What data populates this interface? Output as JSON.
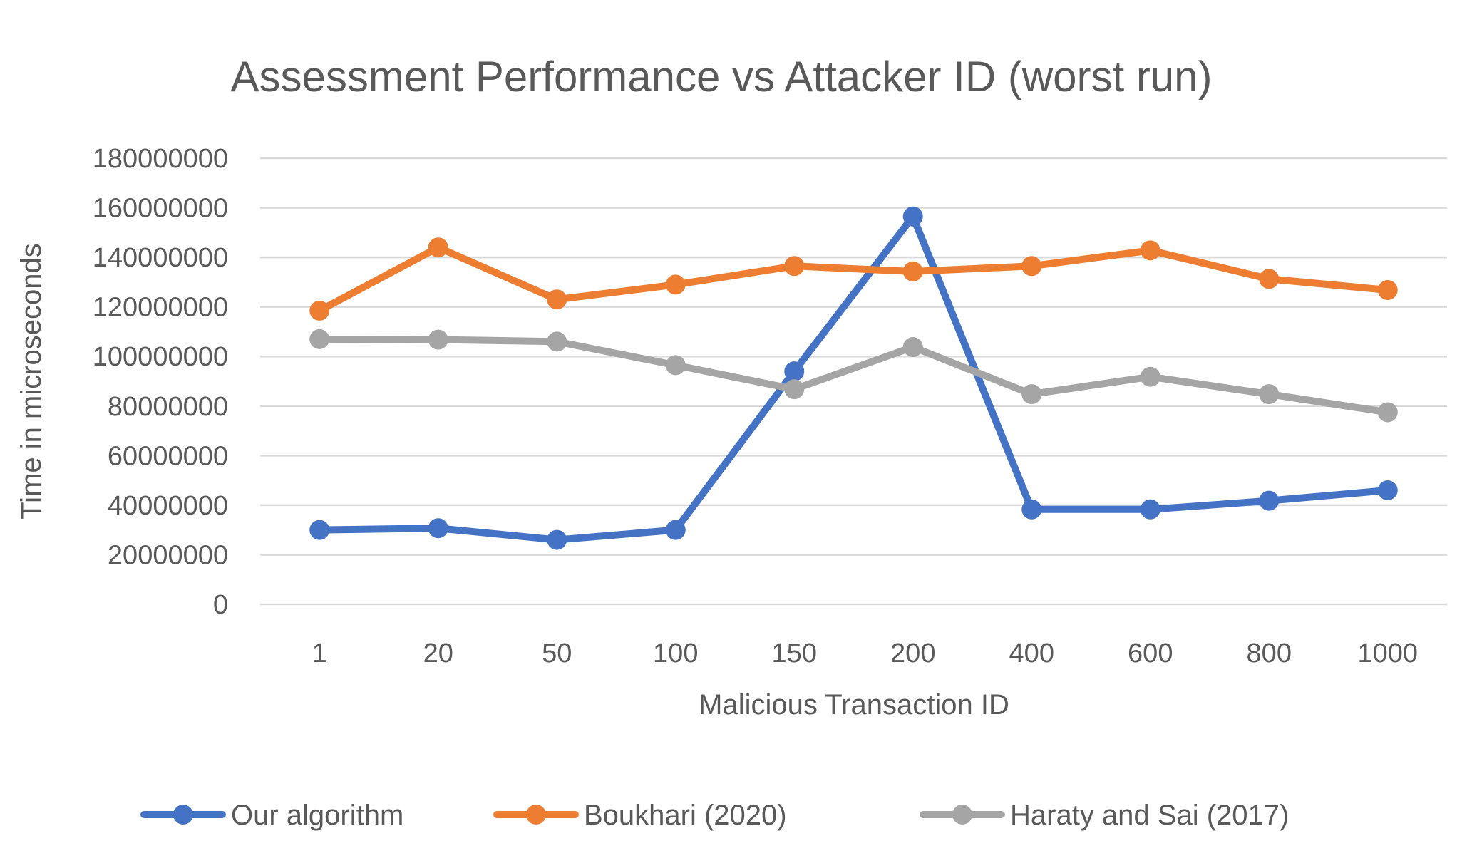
{
  "chart_data": {
    "type": "line",
    "title": "Assessment Performance vs Attacker ID (worst run)",
    "xlabel": "Malicious Transaction ID",
    "ylabel": "Time in microseconds",
    "categories": [
      "1",
      "20",
      "50",
      "100",
      "150",
      "200",
      "400",
      "600",
      "800",
      "1000"
    ],
    "ylim": [
      0,
      180000000
    ],
    "yticks": [
      0,
      20000000,
      40000000,
      60000000,
      80000000,
      100000000,
      120000000,
      140000000,
      160000000,
      180000000
    ],
    "ytick_labels": [
      "0",
      "20000000",
      "40000000",
      "60000000",
      "80000000",
      "100000000",
      "120000000",
      "140000000",
      "160000000",
      "180000000"
    ],
    "grid": true,
    "legend_position": "bottom",
    "series": [
      {
        "name": "Our algorithm",
        "color": "#4472C4",
        "values": [
          30000000,
          30700000,
          26000000,
          30000000,
          94000000,
          156500000,
          38300000,
          38300000,
          41800000,
          46000000
        ]
      },
      {
        "name": "Boukhari (2020)",
        "color": "#ED7D31",
        "values": [
          118500000,
          144000000,
          123000000,
          129000000,
          136500000,
          134300000,
          136500000,
          142800000,
          131300000,
          126800000
        ]
      },
      {
        "name": "Haraty and Sai (2017)",
        "color": "#A5A5A5",
        "values": [
          107000000,
          106800000,
          106000000,
          96500000,
          86800000,
          103800000,
          84800000,
          91800000,
          84800000,
          77500000
        ]
      }
    ]
  }
}
